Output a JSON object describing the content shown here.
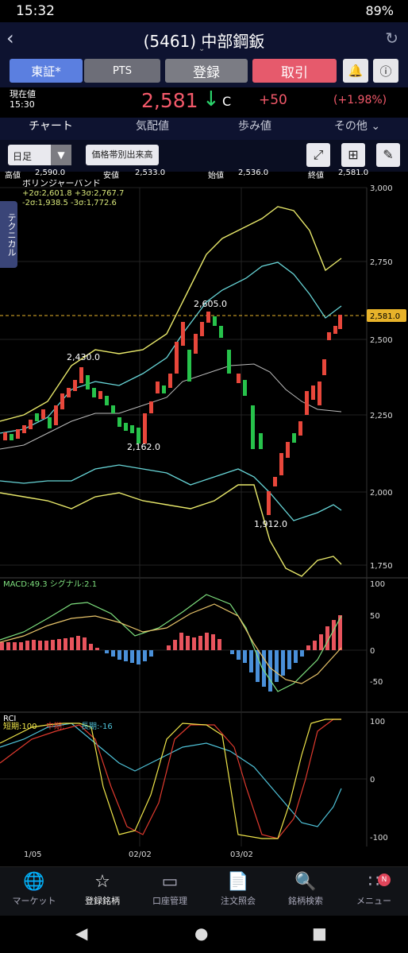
{
  "status": {
    "time": "15:32",
    "battery": "89%"
  },
  "header": {
    "title": "(5461) 中部鋼鈑"
  },
  "buttons": {
    "tosho": "東証*",
    "pts": "PTS",
    "register": "登録",
    "trade": "取引"
  },
  "price": {
    "label1": "現在値",
    "label2": "15:30",
    "value": "2,581",
    "arrow": "↓",
    "flag": "C",
    "change": "+50",
    "pct": "(+1.98%)"
  },
  "tabs": [
    "チャート",
    "気配値",
    "歩み値",
    "その他"
  ],
  "toolbar": {
    "period": "日足",
    "volume_profile": "価格帯別出来高"
  },
  "ohlc": {
    "high_label": "高値",
    "high": "2,590.0",
    "low_label": "安値",
    "low": "2,533.0",
    "open_label": "始値",
    "open": "2,536.0",
    "close_label": "終値",
    "close": "2,581.0"
  },
  "side_tab": "テクニカル",
  "chart": {
    "bb": {
      "title": "ボリンジャーバンド",
      "line1": "+2σ:2,601.8  +3σ:2,767.7",
      "line2": "-2σ:1,938.5  -3σ:1,772.6"
    },
    "y_labels": [
      "3,000",
      "2,750",
      "2,500",
      "2,250",
      "2,000",
      "1,750"
    ],
    "current_tag": "2,581.0",
    "annotations": [
      "2,605.0",
      "2,430.0",
      "2,162.0",
      "1,912.0"
    ],
    "macd": {
      "label": "MACD:49.3  シグナル:2.1",
      "y_labels": [
        "100",
        "50",
        "0",
        "-50"
      ]
    },
    "rci": {
      "label": "RCI",
      "short": "短期:100",
      "mid": "中期:",
      "long": "長期:-16",
      "y_labels": [
        "100",
        "0",
        "-100"
      ]
    },
    "x_labels": [
      "1/05",
      "02/02",
      "03/02"
    ]
  },
  "chart_data": {
    "type": "candlestick",
    "y_range": [
      1750,
      3000
    ],
    "last_close": 2581.0
  },
  "nav": [
    "マーケット",
    "登録銘柄",
    "口座管理",
    "注文照会",
    "銘柄検索",
    "メニュー"
  ],
  "nav_badge": "N"
}
